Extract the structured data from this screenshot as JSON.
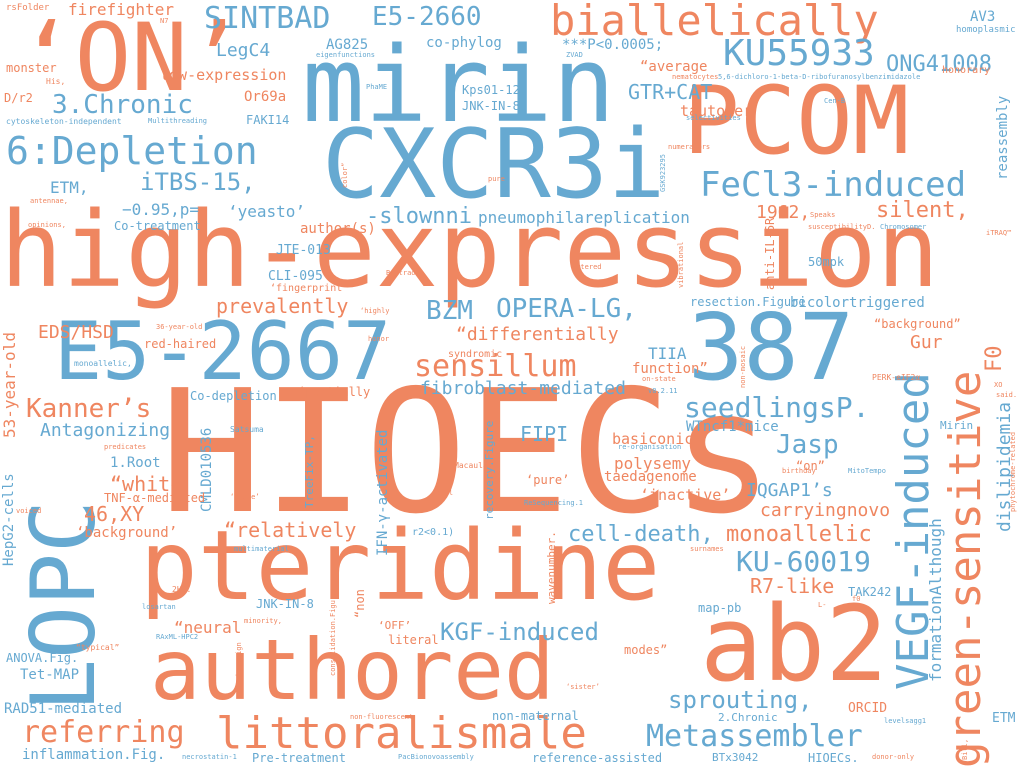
{
  "palette": {
    "blue": "#66a9d1",
    "orange": "#ef8660"
  },
  "words": [
    {
      "text": "HIOECs",
      "color": "orange"
    },
    {
      "text": "high-expression",
      "color": "orange"
    },
    {
      "text": "CXCR3i",
      "color": "blue"
    },
    {
      "text": "mirin",
      "color": "blue"
    },
    {
      "text": "pteridine",
      "color": "orange"
    },
    {
      "text": "authored",
      "color": "orange"
    },
    {
      "text": "PCOM",
      "color": "orange"
    },
    {
      "text": "ab2",
      "color": "orange"
    },
    {
      "text": "387",
      "color": "blue"
    },
    {
      "text": "E5-2667",
      "color": "blue"
    },
    {
      "text": "‘ON’",
      "color": "orange"
    },
    {
      "text": "LOPC",
      "color": "blue"
    },
    {
      "text": "VEGF-induced",
      "color": "blue"
    },
    {
      "text": "green-sensitive",
      "color": "orange"
    },
    {
      "text": "biallelically",
      "color": "orange"
    },
    {
      "text": "littoralismale",
      "color": "orange"
    },
    {
      "text": "KU55933",
      "color": "blue"
    },
    {
      "text": "6:Depletion",
      "color": "blue"
    },
    {
      "text": "FeCl3-induced",
      "color": "blue"
    },
    {
      "text": "SINTBAD",
      "color": "blue"
    },
    {
      "text": "E5-2660",
      "color": "blue"
    },
    {
      "text": "Metassembler",
      "color": "blue"
    },
    {
      "text": "sensillum",
      "color": "orange"
    },
    {
      "text": "KU-60019",
      "color": "blue"
    },
    {
      "text": "referring",
      "color": "orange"
    },
    {
      "text": "OPERA-LG,",
      "color": "blue"
    },
    {
      "text": "seedlingsP.",
      "color": "blue"
    },
    {
      "text": "Kanner’s",
      "color": "orange"
    },
    {
      "text": "3.Chronic",
      "color": "blue"
    },
    {
      "text": "iTBS-15,",
      "color": "blue"
    },
    {
      "text": "ONG41008",
      "color": "blue"
    },
    {
      "text": "GTR+CAT",
      "color": "blue"
    },
    {
      "text": "-slownni",
      "color": "blue"
    },
    {
      "text": "silent,",
      "color": "orange"
    },
    {
      "text": "sprouting,",
      "color": "blue"
    },
    {
      "text": "KGF-induced",
      "color": "blue"
    },
    {
      "text": "cell-death,",
      "color": "blue"
    },
    {
      "text": "monoallelic",
      "color": "orange"
    },
    {
      "text": "IQGAP1’s",
      "color": "blue"
    },
    {
      "text": "carryingnovo",
      "color": "orange"
    },
    {
      "text": "R7-like",
      "color": "orange"
    },
    {
      "text": "“relatively",
      "color": "orange"
    },
    {
      "text": "“white",
      "color": "orange"
    },
    {
      "text": "46,XY",
      "color": "orange"
    },
    {
      "text": "Jasp",
      "color": "blue"
    },
    {
      "text": "BZM",
      "color": "blue"
    },
    {
      "text": "FIPI",
      "color": "blue"
    },
    {
      "text": "F0",
      "color": "orange"
    },
    {
      "text": "ETM,",
      "color": "blue"
    },
    {
      "text": "EDS/HSD",
      "color": "orange"
    },
    {
      "text": "prevalently",
      "color": "orange"
    },
    {
      "text": "Antagonizing",
      "color": "blue"
    },
    {
      "text": "fibroblast-mediated",
      "color": "blue"
    },
    {
      "text": "“differentially",
      "color": "orange"
    },
    {
      "text": "pneumophilareplication",
      "color": "blue"
    },
    {
      "text": "LegC4",
      "color": "blue"
    },
    {
      "text": "1962,",
      "color": "orange"
    },
    {
      "text": "‘yeasto’",
      "color": "blue"
    },
    {
      "text": "−0.95,p=",
      "color": "blue"
    },
    {
      "text": "dislipidemia",
      "color": "blue"
    },
    {
      "text": "formationAlthough",
      "color": "blue"
    },
    {
      "text": "53-year-old",
      "color": "orange"
    },
    {
      "text": "HepG2-cells",
      "color": "blue"
    },
    {
      "text": "CMLD010536",
      "color": "blue"
    },
    {
      "text": "IFN-γ-activated",
      "color": "blue"
    },
    {
      "text": "polysemy",
      "color": "orange"
    },
    {
      "text": "‘inactive’",
      "color": "orange"
    },
    {
      "text": "basiconic",
      "color": "orange"
    },
    {
      "text": "taedagenome",
      "color": "orange"
    },
    {
      "text": "WTncf1*mice",
      "color": "blue"
    },
    {
      "text": "TIIA",
      "color": "blue"
    },
    {
      "text": "function”",
      "color": "orange"
    },
    {
      "text": "Gur",
      "color": "orange"
    },
    {
      "text": "“background”",
      "color": "orange"
    },
    {
      "text": "bicolortriggered",
      "color": "blue"
    },
    {
      "text": "resection.Figure",
      "color": "blue"
    },
    {
      "text": "50mpk",
      "color": "blue"
    },
    {
      "text": "anti-IL-6R",
      "color": "orange"
    },
    {
      "text": "CLI-095",
      "color": "blue"
    },
    {
      "text": "JTE-013",
      "color": "blue"
    },
    {
      "text": "author(s)",
      "color": "orange"
    },
    {
      "text": "‘fingerprint’",
      "color": "orange"
    },
    {
      "text": "Co-treatment",
      "color": "blue"
    },
    {
      "text": "firefighter",
      "color": "orange"
    },
    {
      "text": "AG825",
      "color": "blue"
    },
    {
      "text": "co-phylog",
      "color": "blue"
    },
    {
      "text": "***P<0.0005;",
      "color": "blue"
    },
    {
      "text": "AV3",
      "color": "blue"
    },
    {
      "text": "honorary",
      "color": "orange"
    },
    {
      "text": "homoplasmic",
      "color": "blue"
    },
    {
      "text": "tautomer",
      "color": "orange"
    },
    {
      "text": "Kps01-12,",
      "color": "blue"
    },
    {
      "text": "JNK-IN-8.",
      "color": "blue"
    },
    {
      "text": "“average",
      "color": "orange"
    },
    {
      "text": "Or69a",
      "color": "orange"
    },
    {
      "text": "FAKI14",
      "color": "blue"
    },
    {
      "text": "low-expression",
      "color": "orange"
    },
    {
      "text": "monster",
      "color": "orange"
    },
    {
      "text": "D/r2",
      "color": "orange"
    },
    {
      "text": "His,",
      "color": "orange"
    },
    {
      "text": "reassembly",
      "color": "blue"
    },
    {
      "text": "rsFolder",
      "color": "orange"
    },
    {
      "text": "1.Root",
      "color": "blue"
    },
    {
      "text": "TNF-α-mediated",
      "color": "orange"
    },
    {
      "text": "‘background’",
      "color": "orange"
    },
    {
      "text": "Co-depletion",
      "color": "blue"
    },
    {
      "text": "red-haired",
      "color": "orange"
    },
    {
      "text": "Satsuma",
      "color": "blue"
    },
    {
      "text": "Macaulay",
      "color": "orange"
    },
    {
      "text": "ANOVA.Fig.",
      "color": "blue"
    },
    {
      "text": "Tet-MAP",
      "color": "blue"
    },
    {
      "text": "RAD51-mediated",
      "color": "blue"
    },
    {
      "text": "inflammation.Fig.",
      "color": "blue"
    },
    {
      "text": "Pre-treatment",
      "color": "blue"
    },
    {
      "text": "JNK-IN-8",
      "color": "blue"
    },
    {
      "text": "TreeFix-TP,",
      "color": "blue"
    },
    {
      "text": "“neural",
      "color": "orange"
    },
    {
      "text": "‘OFF’",
      "color": "orange"
    },
    {
      "text": "literal",
      "color": "orange"
    },
    {
      "text": "map-pb",
      "color": "blue"
    },
    {
      "text": "TAK242",
      "color": "blue"
    },
    {
      "text": "non-maternal",
      "color": "blue"
    },
    {
      "text": "reference-assisted",
      "color": "blue"
    },
    {
      "text": "modes”",
      "color": "orange"
    },
    {
      "text": "ORCID",
      "color": "orange"
    },
    {
      "text": "2.Chronic",
      "color": "blue"
    },
    {
      "text": "BTx3042",
      "color": "blue"
    },
    {
      "text": "HIOECs.",
      "color": "blue"
    },
    {
      "text": "ETM",
      "color": "blue"
    },
    {
      "text": "Mirin",
      "color": "blue"
    },
    {
      "text": "wavenumber.",
      "color": "orange"
    },
    {
      "text": "‘pure’",
      "color": "orange"
    },
    {
      "text": "“on”",
      "color": "orange"
    },
    {
      "text": "‘partially",
      "color": "orange"
    },
    {
      "text": "recovery.Figure",
      "color": "blue"
    },
    {
      "text": "2HG.",
      "color": "orange"
    },
    {
      "text": "r2<0.1)",
      "color": "blue"
    },
    {
      "text": "“non",
      "color": "orange"
    },
    {
      "text": "syndromic",
      "color": "orange"
    },
    {
      "text": "PERK-eIF2α",
      "color": "orange"
    },
    {
      "text": "eigenfunctions",
      "color": "blue"
    },
    {
      "text": "Multithreading",
      "color": "blue"
    },
    {
      "text": "cytoskeleton-independent",
      "color": "blue"
    },
    {
      "text": "5,6-dichloro-1-beta-D-ribofuranosylbenzimidazole",
      "color": "blue"
    },
    {
      "text": "nematocytes",
      "color": "orange"
    },
    {
      "text": "selectivities",
      "color": "blue"
    },
    {
      "text": "numerators",
      "color": "orange"
    },
    {
      "text": "GSK923295",
      "color": "blue"
    },
    {
      "text": "iTRAQ™",
      "color": "orange"
    },
    {
      "text": "ZVAD",
      "color": "blue"
    },
    {
      "text": "Cen-B",
      "color": "blue"
    },
    {
      "text": "PhaME",
      "color": "blue"
    },
    {
      "text": "Speaks",
      "color": "orange"
    },
    {
      "text": "susceptibilityD.",
      "color": "orange"
    },
    {
      "text": "Chromosomer",
      "color": "blue"
    },
    {
      "text": "vibrational",
      "color": "orange"
    },
    {
      "text": "uttered",
      "color": "orange"
    },
    {
      "text": "Beltrao",
      "color": "orange"
    },
    {
      "text": "36-year-old",
      "color": "orange"
    },
    {
      "text": "honor",
      "color": "orange"
    },
    {
      "text": "monoallelic,",
      "color": "blue"
    },
    {
      "text": "v8.2.11",
      "color": "blue"
    },
    {
      "text": "on-state",
      "color": "orange"
    },
    {
      "text": "non-mosaic",
      "color": "orange"
    },
    {
      "text": "XO",
      "color": "orange"
    },
    {
      "text": "said.",
      "color": "orange"
    },
    {
      "text": "phytochrome-related",
      "color": "orange"
    },
    {
      "text": "re-organisation",
      "color": "blue"
    },
    {
      "text": "predicates",
      "color": "orange"
    },
    {
      "text": "‘state’",
      "color": "orange"
    },
    {
      "text": "(cell",
      "color": "orange"
    },
    {
      "text": "ReSequencing.1",
      "color": "blue"
    },
    {
      "text": "birthday",
      "color": "orange"
    },
    {
      "text": "MitoTempo",
      "color": "blue"
    },
    {
      "text": "voiced",
      "color": "orange"
    },
    {
      "text": "multimaterial",
      "color": "blue"
    },
    {
      "text": "surnames",
      "color": "orange"
    },
    {
      "text": "losartan",
      "color": "blue"
    },
    {
      "text": "RAxML-HPC2",
      "color": "blue"
    },
    {
      "text": "minority,",
      "color": "orange"
    },
    {
      "text": "homesign",
      "color": "orange"
    },
    {
      "text": "“typical”",
      "color": "orange"
    },
    {
      "text": "consolidation.Figure",
      "color": "orange"
    },
    {
      "text": "‘sister’",
      "color": "orange"
    },
    {
      "text": "non-fluorescent",
      "color": "orange"
    },
    {
      "text": "PacBionovoassembly",
      "color": "blue"
    },
    {
      "text": "necrostatin-1",
      "color": "blue"
    },
    {
      "text": "levelsagg1",
      "color": "blue"
    },
    {
      "text": "donor-only",
      "color": "orange"
    },
    {
      "text": "Bill,",
      "color": "orange"
    },
    {
      "text": "N7",
      "color": "orange"
    },
    {
      "text": "antennae,",
      "color": "orange"
    },
    {
      "text": "opinions,",
      "color": "orange"
    },
    {
      "text": "‘highly",
      "color": "orange"
    },
    {
      "text": "color”",
      "color": "orange"
    },
    {
      "text": "pure",
      "color": "orange"
    },
    {
      "text": "f0",
      "color": "orange"
    },
    {
      "text": "L-",
      "color": "orange"
    }
  ]
}
